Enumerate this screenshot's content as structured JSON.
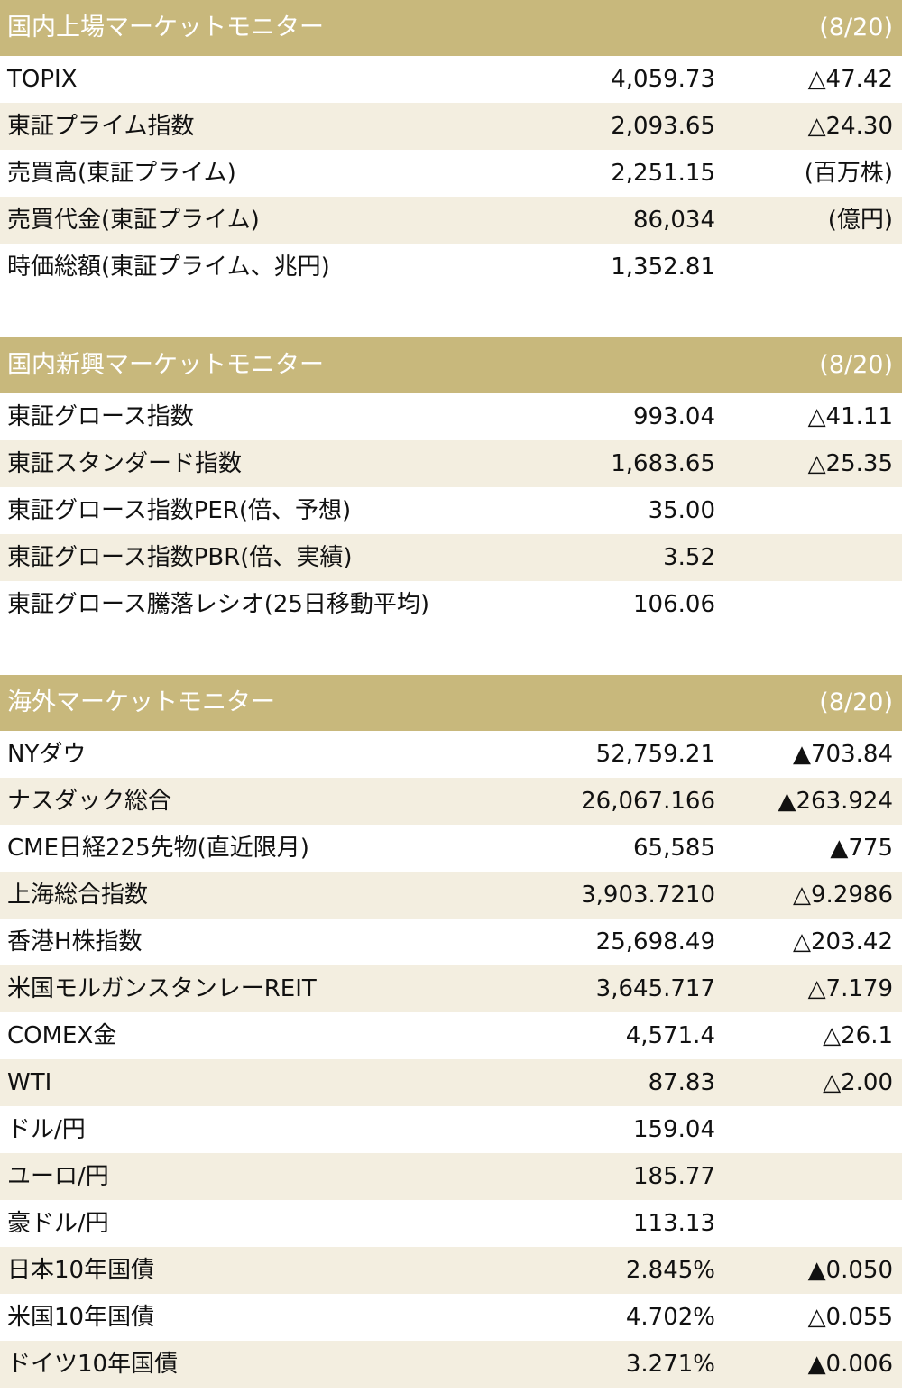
{
  "sections": [
    {
      "title": "国内上場マーケットモニター",
      "date": "(8/20)",
      "rows": [
        {
          "label": "TOPIX",
          "value": "4,059.73",
          "change": "△47.42"
        },
        {
          "label": "東証プライム指数",
          "value": "2,093.65",
          "change": "△24.30"
        },
        {
          "label": "売買高(東証プライム)",
          "value": "2,251.15",
          "change": "(百万株)"
        },
        {
          "label": "売買代金(東証プライム)",
          "value": "86,034",
          "change": "(億円)"
        },
        {
          "label": "時価総額(東証プライム、兆円)",
          "value": "1,352.81"
        }
      ]
    },
    {
      "title": "国内新興マーケットモニター",
      "date": "(8/20)",
      "rows": [
        {
          "label": "東証グロース指数",
          "value": "993.04",
          "change": "△41.11"
        },
        {
          "label": "東証スタンダード指数",
          "value": "1,683.65",
          "change": "△25.35"
        },
        {
          "label": "東証グロース指数PER(倍、予想)",
          "value": "35.00"
        },
        {
          "label": "東証グロース指数PBR(倍、実績)",
          "value": "3.52"
        },
        {
          "label": "東証グロース騰落レシオ(25日移動平均)",
          "value": "106.06"
        }
      ]
    },
    {
      "title": "海外マーケットモニター",
      "date": "(8/20)",
      "rows": [
        {
          "label": "NYダウ",
          "value": "52,759.21",
          "change": "▲703.84"
        },
        {
          "label": "ナスダック総合",
          "value": "26,067.166",
          "change": "▲263.924"
        },
        {
          "label": "CME日経225先物(直近限月)",
          "value": "65,585",
          "change": "▲775"
        },
        {
          "label": "上海総合指数",
          "value": "3,903.7210",
          "change": "△9.2986"
        },
        {
          "label": "香港H株指数",
          "value": "25,698.49",
          "change": "△203.42"
        },
        {
          "label": "米国モルガンスタンレーREIT",
          "value": "3,645.717",
          "change": "△7.179"
        },
        {
          "label": "COMEX金",
          "value": "4,571.4",
          "change": "△26.1"
        },
        {
          "label": "WTI",
          "value": "87.83",
          "change": "△2.00"
        },
        {
          "label": "ドル/円",
          "value": "159.04"
        },
        {
          "label": "ユーロ/円",
          "value": "185.77"
        },
        {
          "label": "豪ドル/円",
          "value": "113.13"
        },
        {
          "label": "日本10年国債",
          "value": "2.845%",
          "change": "▲0.050"
        },
        {
          "label": "米国10年国債",
          "value": "4.702%",
          "change": "△0.055"
        },
        {
          "label": "ドイツ10年国債",
          "value": "3.271%",
          "change": "▲0.006"
        }
      ]
    }
  ]
}
